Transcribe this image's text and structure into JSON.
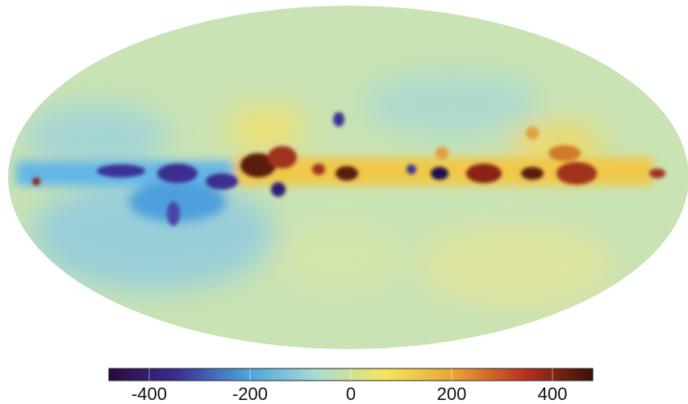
{
  "chart_data": {
    "type": "colorbar",
    "clim": [
      -480,
      480
    ],
    "ticks": [
      -400,
      -200,
      0,
      200,
      400
    ],
    "colormap": [
      "#2b0838",
      "#3b2f95",
      "#4aa2dc",
      "#a7dcd4",
      "#f4e55a",
      "#e9a336",
      "#b8321f",
      "#3a1107"
    ]
  }
}
